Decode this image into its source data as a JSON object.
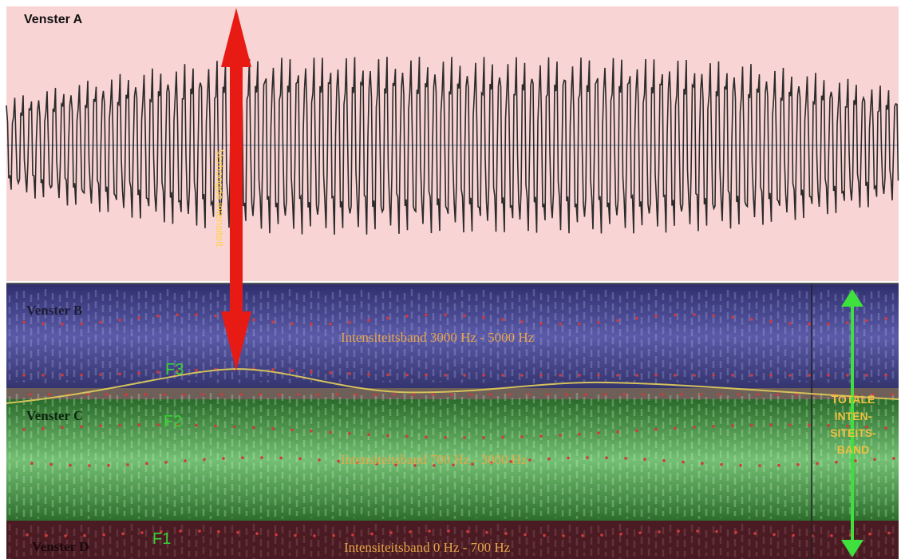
{
  "panels": {
    "a": "Venster A",
    "b": "Venster B",
    "c": "Venster C",
    "d": "Venster D"
  },
  "bands": {
    "b": "Intensiteitsband 3000 Hz - 5000 Hz",
    "c": "Intensiteitsband 700 Hz - 3000 Hz",
    "d": "Intensiteitsband 0 Hz - 700 Hz"
  },
  "formants": {
    "f1": "F1",
    "f2": "F2",
    "f3": "F3"
  },
  "arrow_text": "Verhoogde intensiteit",
  "totale_lines": [
    "TOTALE",
    "INTEN-",
    "SITEITS-",
    "BAND"
  ],
  "colors": {
    "panel_a": "#f9d4d4",
    "panel_b": "#39397e",
    "panel_c": "#2d7b2d",
    "panel_d": "#4a1b22",
    "red_arrow": "#e81a14",
    "green_arrow": "#3ee03e",
    "band_text": "#e8a64a",
    "formant_text": "#38d438"
  },
  "icons": [
    "red-double-arrow-icon",
    "green-double-arrow-icon"
  ]
}
